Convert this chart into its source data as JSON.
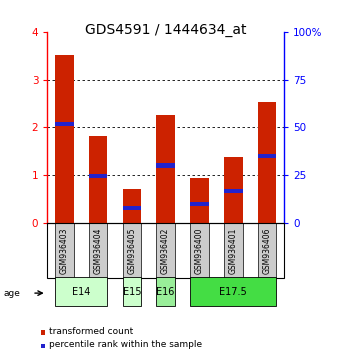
{
  "title": "GDS4591 / 1444634_at",
  "samples": [
    "GSM936403",
    "GSM936404",
    "GSM936405",
    "GSM936402",
    "GSM936400",
    "GSM936401",
    "GSM936406"
  ],
  "red_values": [
    3.52,
    1.82,
    0.71,
    2.26,
    0.95,
    1.38,
    2.53
  ],
  "blue_positions": [
    2.02,
    0.95,
    0.27,
    1.16,
    0.35,
    0.62,
    1.36
  ],
  "blue_heights": [
    0.1,
    0.07,
    0.09,
    0.09,
    0.09,
    0.09,
    0.09
  ],
  "ylim_left": [
    0,
    4
  ],
  "ylim_right": [
    0,
    100
  ],
  "yticks_left": [
    0,
    1,
    2,
    3,
    4
  ],
  "yticks_right": [
    0,
    25,
    50,
    75,
    100
  ],
  "bar_width": 0.55,
  "bar_color_red": "#cc2200",
  "bar_color_blue": "#2222cc",
  "sample_bg_color": "#cccccc",
  "legend_red": "transformed count",
  "legend_blue": "percentile rank within the sample",
  "age_groups": [
    {
      "label": "E14",
      "start": 0,
      "end": 1,
      "color": "#ccffcc"
    },
    {
      "label": "E15",
      "start": 2,
      "end": 2,
      "color": "#ccffcc"
    },
    {
      "label": "E16",
      "start": 3,
      "end": 3,
      "color": "#99ee99"
    },
    {
      "label": "E17.5",
      "start": 4,
      "end": 6,
      "color": "#44dd44"
    }
  ],
  "title_fontsize": 10,
  "tick_fontsize": 7.5,
  "sample_fontsize": 5.5,
  "age_fontsize": 7,
  "legend_fontsize": 6.5
}
